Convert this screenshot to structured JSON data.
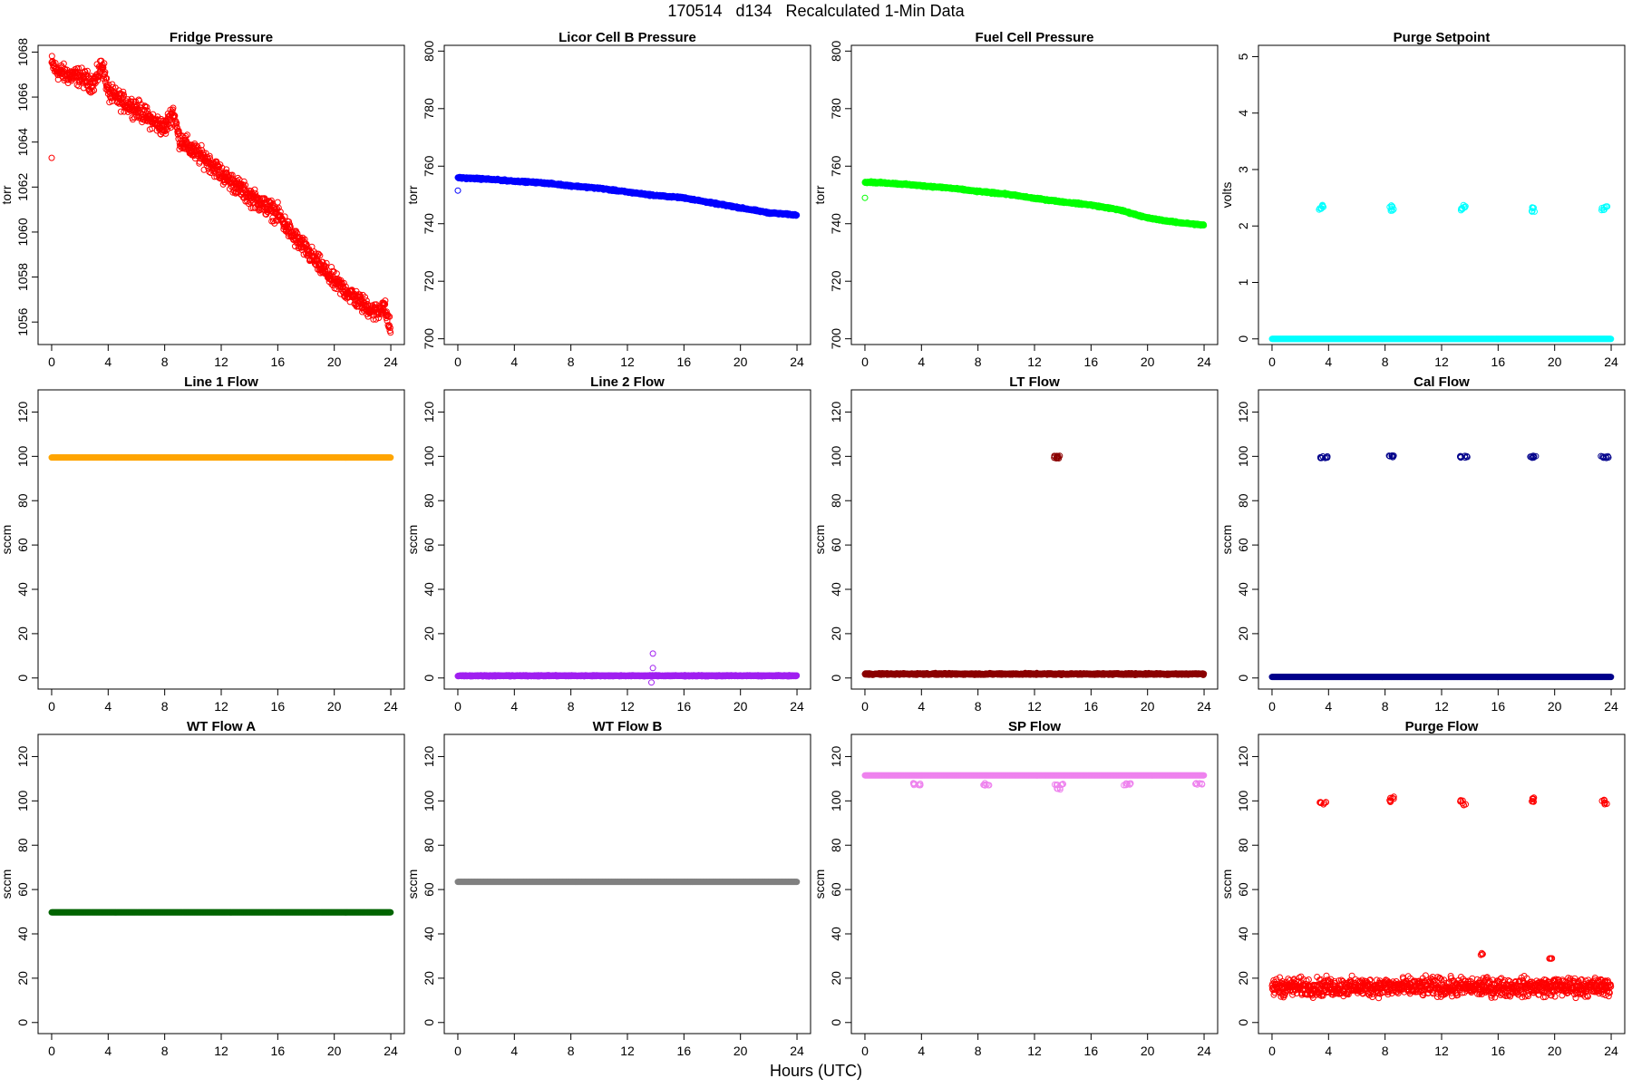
{
  "figure": {
    "title": "170514   d134   Recalculated 1-Min Data",
    "xlabel": "Hours (UTC)"
  },
  "chart_data": [
    {
      "type": "scatter",
      "title": "Fridge Pressure",
      "ylabel": "torr",
      "color": "#ff0000",
      "xlim": [
        0,
        24
      ],
      "xticks": [
        0,
        4,
        8,
        12,
        16,
        20,
        24
      ],
      "ylim": [
        1055,
        1068.3
      ],
      "yticks": [
        1056,
        1058,
        1060,
        1062,
        1064,
        1066,
        1068
      ],
      "series": [
        {
          "x": [
            0,
            0.3,
            1,
            2,
            3,
            3.6,
            4,
            5,
            6,
            7,
            8,
            8.6,
            9,
            10,
            11,
            12,
            13,
            14,
            15,
            16,
            17,
            18,
            19,
            20,
            21,
            22,
            23,
            23.5,
            24
          ],
          "y": [
            1067.5,
            1067.2,
            1067.0,
            1066.9,
            1066.6,
            1067.5,
            1066.2,
            1065.8,
            1065.5,
            1065.0,
            1064.6,
            1065.4,
            1064.2,
            1063.6,
            1063.2,
            1062.6,
            1062.1,
            1061.6,
            1061.2,
            1060.8,
            1059.9,
            1059.2,
            1058.5,
            1057.8,
            1057.3,
            1056.8,
            1056.4,
            1056.8,
            1055.6
          ],
          "outliers": [
            [
              0,
              1063.3
            ]
          ]
        }
      ]
    },
    {
      "type": "scatter",
      "title": "Licor Cell B Pressure",
      "ylabel": "torr",
      "color": "#0000ff",
      "xlim": [
        0,
        24
      ],
      "xticks": [
        0,
        4,
        8,
        12,
        16,
        20,
        24
      ],
      "ylim": [
        698,
        802
      ],
      "yticks": [
        700,
        720,
        740,
        760,
        780,
        800
      ],
      "series": [
        {
          "x": [
            0,
            2,
            4,
            6,
            8,
            10,
            12,
            14,
            16,
            18,
            20,
            22,
            24
          ],
          "y": [
            756,
            755.5,
            754.8,
            754.2,
            753.2,
            752.3,
            751,
            749.8,
            749,
            747.2,
            745.5,
            743.8,
            743
          ],
          "outliers": [
            [
              0,
              751.5
            ]
          ]
        }
      ]
    },
    {
      "type": "scatter",
      "title": "Fuel Cell Pressure",
      "ylabel": "torr",
      "color": "#00ff00",
      "xlim": [
        0,
        24
      ],
      "xticks": [
        0,
        4,
        8,
        12,
        16,
        20,
        24
      ],
      "ylim": [
        698,
        802
      ],
      "yticks": [
        700,
        720,
        740,
        760,
        780,
        800
      ],
      "series": [
        {
          "x": [
            0,
            2,
            4,
            6,
            8,
            10,
            12,
            14,
            16,
            18,
            20,
            22,
            24
          ],
          "y": [
            754.5,
            754,
            753.2,
            752.4,
            751.2,
            750.3,
            748.8,
            747.6,
            746.5,
            744.8,
            742,
            740.5,
            739.5
          ],
          "outliers": [
            [
              0,
              749
            ]
          ]
        }
      ]
    },
    {
      "type": "scatter",
      "title": "Purge Setpoint",
      "ylabel": "volts",
      "color": "#00ffff",
      "xlim": [
        0,
        24
      ],
      "xticks": [
        0,
        4,
        8,
        12,
        16,
        20,
        24
      ],
      "ylim": [
        -0.1,
        5.2
      ],
      "yticks": [
        0,
        1,
        2,
        3,
        4,
        5
      ],
      "series": [
        {
          "x": [
            0,
            24
          ],
          "y": [
            0,
            0
          ],
          "outliers": [
            [
              3.4,
              2.3
            ],
            [
              3.6,
              2.35
            ],
            [
              8.4,
              2.35
            ],
            [
              8.5,
              2.28
            ],
            [
              13.4,
              2.3
            ],
            [
              13.6,
              2.35
            ],
            [
              18.4,
              2.32
            ],
            [
              18.5,
              2.26
            ],
            [
              23.4,
              2.3
            ],
            [
              23.6,
              2.35
            ]
          ]
        }
      ]
    },
    {
      "type": "scatter",
      "title": "Line 1 Flow",
      "ylabel": "sccm",
      "color": "#ffa500",
      "xlim": [
        0,
        24
      ],
      "xticks": [
        0,
        4,
        8,
        12,
        16,
        20,
        24
      ],
      "ylim": [
        -5,
        130
      ],
      "yticks": [
        0,
        20,
        40,
        60,
        80,
        100,
        120
      ],
      "series": [
        {
          "x": [
            0,
            24
          ],
          "y": [
            99.5,
            99.5
          ],
          "outliers": []
        }
      ]
    },
    {
      "type": "scatter",
      "title": "Line 2 Flow",
      "ylabel": "sccm",
      "color": "#a020f0",
      "xlim": [
        0,
        24
      ],
      "xticks": [
        0,
        4,
        8,
        12,
        16,
        20,
        24
      ],
      "ylim": [
        -5,
        130
      ],
      "yticks": [
        0,
        20,
        40,
        60,
        80,
        100,
        120
      ],
      "series": [
        {
          "x": [
            0,
            24
          ],
          "y": [
            1,
            1
          ],
          "outliers": [
            [
              13.8,
              11
            ],
            [
              13.8,
              4.5
            ],
            [
              13.7,
              -2
            ]
          ]
        }
      ]
    },
    {
      "type": "scatter",
      "title": "LT Flow",
      "ylabel": "sccm",
      "color": "#8b0000",
      "xlim": [
        0,
        24
      ],
      "xticks": [
        0,
        4,
        8,
        12,
        16,
        20,
        24
      ],
      "ylim": [
        -5,
        130
      ],
      "yticks": [
        0,
        20,
        40,
        60,
        80,
        100,
        120
      ],
      "series": [
        {
          "x": [
            0,
            24
          ],
          "y": [
            1.8,
            1.8
          ],
          "outliers": [
            [
              13.5,
              99.8
            ],
            [
              13.6,
              99.6
            ],
            [
              13.7,
              99.8
            ]
          ]
        }
      ]
    },
    {
      "type": "scatter",
      "title": "Cal Flow",
      "ylabel": "sccm",
      "color": "#00008b",
      "xlim": [
        0,
        24
      ],
      "xticks": [
        0,
        4,
        8,
        12,
        16,
        20,
        24
      ],
      "ylim": [
        -5,
        130
      ],
      "yticks": [
        0,
        20,
        40,
        60,
        80,
        100,
        120
      ],
      "series": [
        {
          "x": [
            0,
            24
          ],
          "y": [
            0.5,
            0.5
          ],
          "outliers": [
            [
              3.5,
              99.8
            ],
            [
              3.8,
              99.8
            ],
            [
              8.4,
              99.8
            ],
            [
              8.6,
              99.8
            ],
            [
              13.4,
              99.8
            ],
            [
              13.7,
              99.8
            ],
            [
              18.4,
              99.8
            ],
            [
              18.6,
              99.8
            ],
            [
              23.4,
              99.8
            ],
            [
              23.7,
              99.8
            ]
          ]
        }
      ]
    },
    {
      "type": "scatter",
      "title": "WT Flow A",
      "ylabel": "sccm",
      "color": "#006400",
      "xlim": [
        0,
        24
      ],
      "xticks": [
        0,
        4,
        8,
        12,
        16,
        20,
        24
      ],
      "ylim": [
        -5,
        130
      ],
      "yticks": [
        0,
        20,
        40,
        60,
        80,
        100,
        120
      ],
      "series": [
        {
          "x": [
            0,
            24
          ],
          "y": [
            49.7,
            49.7
          ],
          "outliers": []
        }
      ]
    },
    {
      "type": "scatter",
      "title": "WT Flow B",
      "ylabel": "sccm",
      "color": "#808080",
      "xlim": [
        0,
        24
      ],
      "xticks": [
        0,
        4,
        8,
        12,
        16,
        20,
        24
      ],
      "ylim": [
        -5,
        130
      ],
      "yticks": [
        0,
        20,
        40,
        60,
        80,
        100,
        120
      ],
      "series": [
        {
          "x": [
            0,
            24
          ],
          "y": [
            63.5,
            63.5
          ],
          "outliers": []
        }
      ]
    },
    {
      "type": "scatter",
      "title": "SP Flow",
      "ylabel": "sccm",
      "color": "#ee82ee",
      "xlim": [
        0,
        24
      ],
      "xticks": [
        0,
        4,
        8,
        12,
        16,
        20,
        24
      ],
      "ylim": [
        -5,
        130
      ],
      "yticks": [
        0,
        20,
        40,
        60,
        80,
        100,
        120
      ],
      "series": [
        {
          "x": [
            0,
            24
          ],
          "y": [
            111.5,
            111.5
          ],
          "outliers": [
            [
              3.5,
              107.5
            ],
            [
              3.9,
              107.5
            ],
            [
              8.4,
              107.5
            ],
            [
              8.7,
              107.5
            ],
            [
              13.5,
              107.5
            ],
            [
              13.9,
              107.5
            ],
            [
              13.7,
              105.5
            ],
            [
              18.4,
              107.5
            ],
            [
              18.7,
              107.5
            ],
            [
              23.4,
              107.5
            ],
            [
              23.8,
              107.5
            ]
          ]
        }
      ]
    },
    {
      "type": "scatter",
      "title": "Purge Flow",
      "ylabel": "sccm",
      "color": "#ff0000",
      "xlim": [
        0,
        24
      ],
      "xticks": [
        0,
        4,
        8,
        12,
        16,
        20,
        24
      ],
      "ylim": [
        -5,
        130
      ],
      "yticks": [
        0,
        20,
        40,
        60,
        80,
        100,
        120
      ],
      "series": [
        {
          "x": [
            0,
            24
          ],
          "y": [
            16,
            16
          ],
          "outliers": [
            [
              3.5,
              99.5
            ],
            [
              3.7,
              99
            ],
            [
              8.4,
              100
            ],
            [
              8.5,
              101.5
            ],
            [
              13.4,
              100
            ],
            [
              13.6,
              98.5
            ],
            [
              18.4,
              99.5
            ],
            [
              18.5,
              101
            ],
            [
              23.4,
              100
            ],
            [
              23.6,
              99
            ],
            [
              14.8,
              31
            ],
            [
              19.7,
              29
            ]
          ]
        }
      ]
    }
  ]
}
